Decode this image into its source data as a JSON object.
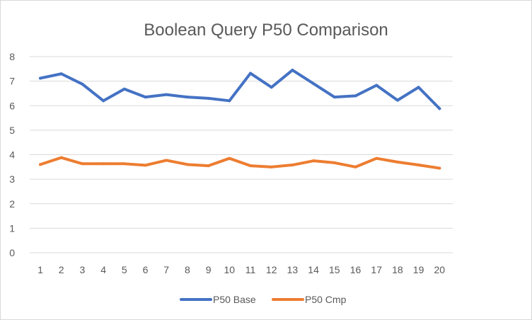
{
  "chart_data": {
    "type": "line",
    "title": "Boolean Query P50 Comparison",
    "xlabel": "",
    "ylabel": "",
    "categories": [
      "1",
      "2",
      "3",
      "4",
      "5",
      "6",
      "7",
      "8",
      "9",
      "10",
      "11",
      "12",
      "13",
      "14",
      "15",
      "16",
      "17",
      "18",
      "19",
      "20"
    ],
    "ylim": [
      0,
      8
    ],
    "yticks": [
      0,
      1,
      2,
      3,
      4,
      5,
      6,
      7,
      8
    ],
    "grid": true,
    "legend_position": "bottom",
    "series": [
      {
        "name": "P50 Base",
        "color": "#4472c4",
        "values": [
          7.12,
          7.3,
          6.88,
          6.2,
          6.68,
          6.35,
          6.45,
          6.35,
          6.3,
          6.2,
          7.32,
          6.75,
          7.45,
          6.9,
          6.35,
          6.4,
          6.83,
          6.22,
          6.75,
          5.88
        ]
      },
      {
        "name": "P50 Cmp",
        "color": "#ed7d31",
        "values": [
          3.6,
          3.88,
          3.63,
          3.63,
          3.63,
          3.57,
          3.77,
          3.6,
          3.55,
          3.85,
          3.55,
          3.5,
          3.58,
          3.75,
          3.67,
          3.5,
          3.85,
          3.7,
          3.58,
          3.45
        ]
      }
    ]
  }
}
